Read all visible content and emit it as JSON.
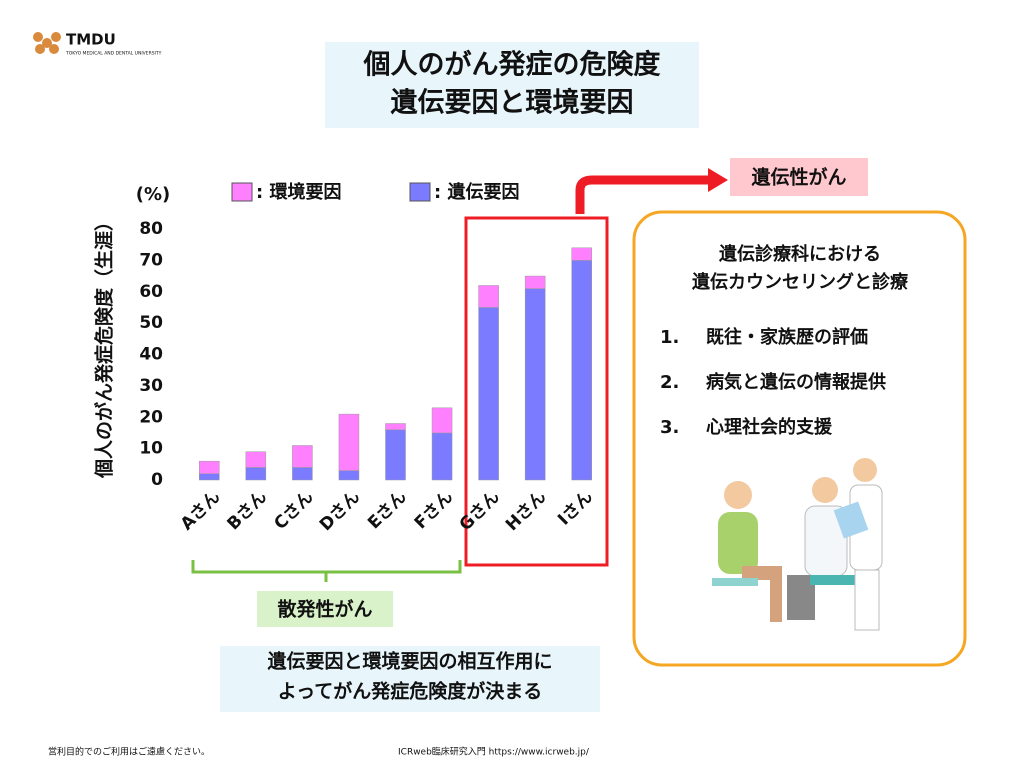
{
  "logo": {
    "name": "TMDU",
    "sub": "TOKYO MEDICAL AND DENTAL UNIVERSITY"
  },
  "chart_data": {
    "type": "bar",
    "stacked": true,
    "title": [
      "個人のがん発症の危険度",
      "遺伝要因と環境要因"
    ],
    "ylabel": "個人のがん発症危険度（生涯）",
    "yunit": "(%)",
    "categories": [
      "Aさん",
      "Bさん",
      "Cさん",
      "Dさん",
      "Eさん",
      "Fさん",
      "Gさん",
      "Hさん",
      "Iさん"
    ],
    "series": [
      {
        "name": ": 環境要因",
        "color": "#ff80ff",
        "values": [
          4,
          5,
          7,
          18,
          2,
          8,
          7,
          4,
          4
        ]
      },
      {
        "name": ": 遺伝要因",
        "color": "#7b7bff",
        "values": [
          2,
          4,
          4,
          3,
          16,
          15,
          55,
          61,
          70
        ]
      }
    ],
    "ylim": [
      0,
      80
    ],
    "yticks": [
      0,
      10,
      20,
      30,
      40,
      50,
      60,
      70,
      80
    ],
    "grid": false,
    "annotations": {
      "hereditary": "遺伝性がん",
      "sporadic": "散発性がん",
      "note": [
        "遺伝要因と環境要因の相互作用に",
        "よってがん発症危険度が決まる"
      ]
    }
  },
  "panel": {
    "title": [
      "遺伝診療科における",
      "遺伝カウンセリングと診療"
    ],
    "items": [
      {
        "num": "1.",
        "text": "既往・家族歴の評価"
      },
      {
        "num": "2.",
        "text": "病気と遺伝の情報提供"
      },
      {
        "num": "3.",
        "text": "心理社会的支援"
      }
    ]
  },
  "footer": {
    "left": "営利目的でのご利用はご遠慮ください。",
    "right": "ICRweb臨床研究入門  https://www.icrweb.jp/"
  }
}
